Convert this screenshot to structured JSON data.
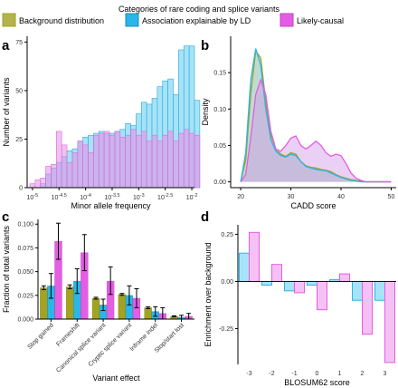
{
  "colors": {
    "background": "#a3a31f",
    "ld": "#29b6e8",
    "causal": "#e55ce5",
    "background_fill": "#b3b34d",
    "ld_fill": "#a6e3f7",
    "causal_fill": "#f5c1f5"
  },
  "legend": {
    "title": "Categories of rare coding and splice variants",
    "items": [
      {
        "key": "background",
        "label": "Background distribution"
      },
      {
        "key": "ld",
        "label": "Association explainable by LD"
      },
      {
        "key": "causal",
        "label": "Likely-causal"
      }
    ]
  },
  "panel_tags": {
    "a": "a",
    "b": "b",
    "c": "c",
    "d": "d"
  },
  "chart_data": [
    {
      "panel": "a",
      "type": "bar",
      "xlabel": "Minor allele frequency",
      "ylabel": "Number of variants",
      "xscale": "log10",
      "xlim": [
        -5.1,
        -1.95
      ],
      "ylim": [
        0,
        78
      ],
      "yticks": [
        0,
        25,
        50,
        75
      ],
      "xticks": [
        {
          "v": -5,
          "base": "10",
          "exp": "-5"
        },
        {
          "v": -4.5,
          "base": "10",
          "exp": "-4.5"
        },
        {
          "v": -4,
          "base": "10",
          "exp": "-4"
        },
        {
          "v": -3.5,
          "base": "10",
          "exp": "-3.5"
        },
        {
          "v": -3,
          "base": "10",
          "exp": "-3"
        },
        {
          "v": -2.5,
          "base": "10",
          "exp": "-2.5"
        },
        {
          "v": -2,
          "base": "10",
          "exp": "-2"
        }
      ],
      "bin_start": -5.05,
      "bin_width": 0.1,
      "series": [
        {
          "key": "ld",
          "values": [
            0,
            0,
            2,
            7,
            10,
            13,
            16,
            19,
            20,
            24,
            26,
            27,
            28,
            29,
            28,
            28,
            29,
            30,
            33,
            32,
            38,
            44,
            43,
            46,
            52,
            55,
            56,
            48,
            71,
            73,
            73,
            45
          ]
        },
        {
          "key": "causal",
          "values": [
            2,
            4,
            5,
            11,
            12,
            29,
            22,
            13,
            18,
            24,
            22,
            18,
            27,
            28,
            29,
            27,
            29,
            26,
            27,
            30,
            27,
            29,
            24,
            27,
            24,
            27,
            29,
            24,
            28,
            30,
            28,
            27
          ]
        }
      ]
    },
    {
      "panel": "b",
      "type": "line",
      "xlabel": "CADD score",
      "ylabel": "Density",
      "xlim": [
        18,
        51
      ],
      "ylim": [
        -0.008,
        0.2
      ],
      "xticks": [
        20,
        30,
        40,
        50
      ],
      "yticks": [
        0.0,
        0.05,
        0.1,
        0.15
      ],
      "ytick_labels": [
        "0.00",
        "0.05",
        "0.10",
        "0.15"
      ],
      "x": [
        20,
        21,
        22,
        23,
        24,
        25,
        26,
        27,
        28,
        29,
        30,
        31,
        32,
        33,
        34,
        35,
        36,
        37,
        38,
        39,
        40,
        41,
        42,
        43,
        44,
        45,
        46,
        47,
        48,
        49,
        50
      ],
      "series": [
        {
          "key": "background",
          "values": [
            0.0,
            0.03,
            0.12,
            0.18,
            0.17,
            0.11,
            0.065,
            0.045,
            0.038,
            0.035,
            0.04,
            0.038,
            0.028,
            0.022,
            0.02,
            0.019,
            0.017,
            0.016,
            0.014,
            0.01,
            0.007,
            0.005,
            0.003,
            0.002,
            0.001,
            0.0,
            0.0,
            0.0,
            0.0,
            0.0,
            0.0
          ]
        },
        {
          "key": "ld",
          "values": [
            0.0,
            0.04,
            0.14,
            0.183,
            0.16,
            0.1,
            0.058,
            0.042,
            0.036,
            0.034,
            0.038,
            0.036,
            0.028,
            0.021,
            0.019,
            0.017,
            0.016,
            0.015,
            0.012,
            0.009,
            0.006,
            0.004,
            0.002,
            0.001,
            0.0,
            0.0,
            0.0,
            0.0,
            0.0,
            0.0,
            0.0
          ]
        },
        {
          "key": "causal",
          "values": [
            0.0,
            0.01,
            0.06,
            0.12,
            0.14,
            0.12,
            0.07,
            0.045,
            0.042,
            0.05,
            0.06,
            0.063,
            0.05,
            0.045,
            0.05,
            0.056,
            0.05,
            0.04,
            0.035,
            0.038,
            0.036,
            0.025,
            0.012,
            0.005,
            0.002,
            0.0,
            0.0,
            0.0,
            0.0,
            0.0,
            0.0
          ]
        }
      ]
    },
    {
      "panel": "c",
      "type": "bar",
      "xlabel": "Variant effect",
      "ylabel": "Fraction of total variants",
      "ylim": [
        0,
        0.105
      ],
      "yticks": [
        0.0,
        0.025,
        0.05,
        0.075,
        0.1
      ],
      "ytick_labels": [
        "0.000",
        "0.025",
        "0.050",
        "0.075",
        "0.100"
      ],
      "categories": [
        "Stop gained",
        "Frameshift",
        "Canonical splice variant",
        "Cryptic splice variant",
        "Inframe indel",
        "Stop/start lost"
      ],
      "series": [
        {
          "key": "background",
          "values": [
            0.033,
            0.034,
            0.022,
            0.026,
            0.012,
            0.003
          ],
          "err_low": [
            0.031,
            0.032,
            0.021,
            0.025,
            0.011,
            0.0025
          ],
          "err_high": [
            0.035,
            0.036,
            0.023,
            0.027,
            0.013,
            0.0035
          ]
        },
        {
          "key": "ld",
          "values": [
            0.035,
            0.04,
            0.015,
            0.025,
            0.008,
            0.002
          ],
          "err_low": [
            0.022,
            0.027,
            0.009,
            0.015,
            0.003,
            0.0
          ],
          "err_high": [
            0.048,
            0.053,
            0.021,
            0.035,
            0.013,
            0.004
          ]
        },
        {
          "key": "causal",
          "values": [
            0.082,
            0.07,
            0.04,
            0.022,
            0.006,
            0.003
          ],
          "err_low": [
            0.063,
            0.051,
            0.026,
            0.012,
            0.0,
            0.0
          ],
          "err_high": [
            0.101,
            0.089,
            0.055,
            0.032,
            0.012,
            0.006
          ]
        }
      ]
    },
    {
      "panel": "d",
      "type": "bar",
      "xlabel": "BLOSUM62 score",
      "ylabel": "Enrichment over background",
      "ylim": [
        -0.44,
        0.3
      ],
      "yticks": [
        -0.25,
        0.0,
        0.25
      ],
      "ytick_labels": [
        "-0.25",
        "0.00",
        "0.25"
      ],
      "categories": [
        "-3",
        "-2",
        "-1",
        "0",
        "1",
        "2",
        "3"
      ],
      "series": [
        {
          "key": "ld",
          "values": [
            0.15,
            -0.02,
            -0.05,
            -0.02,
            0.01,
            -0.1,
            -0.1
          ]
        },
        {
          "key": "causal",
          "values": [
            0.26,
            0.09,
            -0.06,
            -0.15,
            0.04,
            -0.28,
            -0.43
          ]
        }
      ]
    }
  ]
}
